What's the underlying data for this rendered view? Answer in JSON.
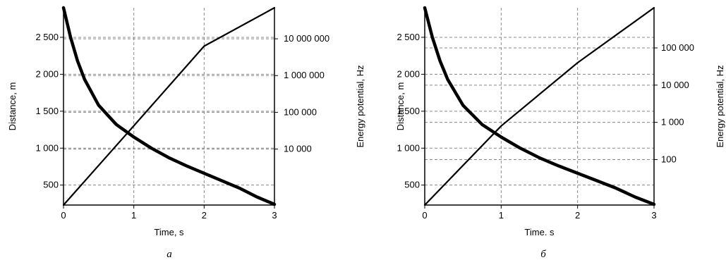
{
  "chart_data": [
    {
      "panel_label": "а",
      "type": "line",
      "xlabel": "Time, s",
      "ylabel": "Distance, m",
      "y2label": "Energy potential, Hz",
      "xlim": [
        0,
        3
      ],
      "ylim": [
        230,
        2900
      ],
      "y2_scale": "log",
      "y2lim": [
        300,
        70000000
      ],
      "x_ticks": [
        "0",
        "1",
        "2",
        "3"
      ],
      "y_ticks": [
        {
          "value": 500,
          "label": "500"
        },
        {
          "value": 1000,
          "label": "1 000"
        },
        {
          "value": 1500,
          "label": "1 500"
        },
        {
          "value": 2000,
          "label": "2 000"
        },
        {
          "value": 2500,
          "label": "2 500"
        }
      ],
      "y2_ticks": [
        {
          "value": 10000,
          "label": "10 000"
        },
        {
          "value": 100000,
          "label": "100 000"
        },
        {
          "value": 1000000,
          "label": "1 000 000"
        },
        {
          "value": 10000000,
          "label": "10 000 000"
        }
      ],
      "grid": true,
      "series": [
        {
          "axis": "left",
          "style": "thick",
          "x": [
            0,
            0.1,
            0.2,
            0.3,
            0.5,
            0.75,
            1.0,
            1.25,
            1.5,
            1.75,
            2.0,
            2.25,
            2.5,
            2.75,
            3.0
          ],
          "y": [
            2900,
            2500,
            2180,
            1930,
            1580,
            1320,
            1150,
            1000,
            870,
            760,
            660,
            560,
            460,
            340,
            240
          ]
        },
        {
          "axis": "right",
          "style": "thin",
          "x": [
            0,
            1.0,
            2.0,
            3.0
          ],
          "y": [
            300,
            43000,
            6300000,
            70000000
          ]
        }
      ]
    },
    {
      "panel_label": "б",
      "type": "line",
      "xlabel": "Time. s",
      "ylabel": "Distance, m",
      "y2label": "Energy potential, Hz",
      "xlim": [
        0,
        3
      ],
      "ylim": [
        230,
        2900
      ],
      "y2_scale": "log",
      "y2lim": [
        6,
        1200000
      ],
      "x_ticks": [
        "0",
        "1",
        "2",
        "3"
      ],
      "y_ticks": [
        {
          "value": 500,
          "label": "500"
        },
        {
          "value": 1000,
          "label": "1 000"
        },
        {
          "value": 1500,
          "label": "1 500"
        },
        {
          "value": 2000,
          "label": "2 000"
        },
        {
          "value": 2500,
          "label": "2 500"
        }
      ],
      "y2_ticks": [
        {
          "value": 100,
          "label": "100"
        },
        {
          "value": 1000,
          "label": "1 000"
        },
        {
          "value": 10000,
          "label": "10 000"
        },
        {
          "value": 100000,
          "label": "100 000"
        }
      ],
      "grid": true,
      "series": [
        {
          "axis": "left",
          "style": "thick",
          "x": [
            0,
            0.1,
            0.2,
            0.3,
            0.5,
            0.75,
            1.0,
            1.25,
            1.5,
            1.75,
            2.0,
            2.25,
            2.5,
            2.75,
            3.0
          ],
          "y": [
            2900,
            2500,
            2180,
            1930,
            1580,
            1320,
            1150,
            1000,
            870,
            760,
            660,
            560,
            460,
            340,
            240
          ]
        },
        {
          "axis": "right",
          "style": "thin",
          "x": [
            0,
            1.0,
            2.0,
            3.0
          ],
          "y": [
            6,
            800,
            40000,
            1200000
          ]
        }
      ]
    }
  ]
}
